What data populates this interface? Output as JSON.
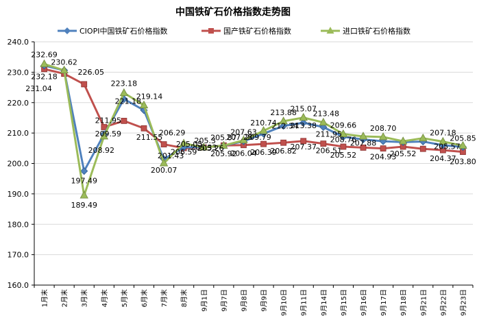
{
  "chart_data": {
    "type": "line",
    "title": "中国铁矿石价格指数走势图",
    "categories": [
      "1月末",
      "2月末",
      "3月末",
      "4月末",
      "5月末",
      "6月末",
      "7月末",
      "8月末",
      "9月1日",
      "9月7日",
      "9月8日",
      "9月9日",
      "9月10日",
      "9月11日",
      "9月14日",
      "9月15日",
      "9月16日",
      "9月17日",
      "9月18日",
      "9月21日",
      "9月22日",
      "9月23日"
    ],
    "ylim": [
      160,
      240
    ],
    "yticks": [
      "160.0",
      "170.0",
      "180.0",
      "190.0",
      "200.0",
      "210.0",
      "220.0",
      "230.0",
      "240.0"
    ],
    "legend_position": "top",
    "grid": true,
    "series": [
      {
        "name": "CIOPI中国铁矿石价格指数",
        "color": "#4f81bd",
        "marker": "diamond",
        "values": [
          232.18,
          230.62,
          197.49,
          209.59,
          221.18,
          217.5,
          201.43,
          205.3,
          205.33,
          205.85,
          207.28,
          209.79,
          212.34,
          213.38,
          211.95,
          208.76,
          207.88,
          207.3,
          207.0,
          207.2,
          206.0,
          205.4
        ],
        "labels": [
          "232.18",
          "",
          "197.49",
          "209.59",
          "221.18",
          "",
          "201.43",
          "",
          "205.33",
          "",
          "207.28",
          "209.79",
          "212.34",
          "213.38",
          "211.95",
          "208.76",
          "207.88",
          "",
          "",
          "",
          "",
          ""
        ]
      },
      {
        "name": "国产铁矿石价格指数",
        "color": "#c0504d",
        "marker": "square",
        "values": [
          231.04,
          229.5,
          226.05,
          211.95,
          214.0,
          211.55,
          206.29,
          205.05,
          205.26,
          205.92,
          206.04,
          206.39,
          206.82,
          207.37,
          206.51,
          205.52,
          205.2,
          204.93,
          205.52,
          204.8,
          204.37,
          203.8
        ],
        "labels": [
          "231.04",
          "",
          "226.05",
          "211.95",
          "",
          "211.55",
          "206.29",
          "205.05",
          "205.26",
          "205.92",
          "206.04",
          "206.39",
          "206.82",
          "207.37",
          "206.51",
          "205.52",
          "",
          "204.93",
          "205.52",
          "",
          "204.37",
          "203.80"
        ]
      },
      {
        "name": "进口铁矿石价格指数",
        "color": "#9bbb59",
        "marker": "triangle",
        "values": [
          232.69,
          230.62,
          189.49,
          208.92,
          223.18,
          219.14,
          200.07,
          206.59,
          205.3,
          205.87,
          207.63,
          210.74,
          213.88,
          215.07,
          213.48,
          209.66,
          208.9,
          208.7,
          207.3,
          208.3,
          207.18,
          205.85
        ],
        "labels": [
          "232.69",
          "230.62",
          "189.49",
          "208.92",
          "223.18",
          "219.14",
          "200.07",
          "206.59",
          "205.3",
          "205.87",
          "207.63",
          "210.74",
          "213.88",
          "215.07",
          "213.48",
          "209.66",
          "",
          "208.70",
          "",
          "",
          "207.18",
          "205.85"
        ]
      }
    ],
    "extra_label": "205.57"
  }
}
